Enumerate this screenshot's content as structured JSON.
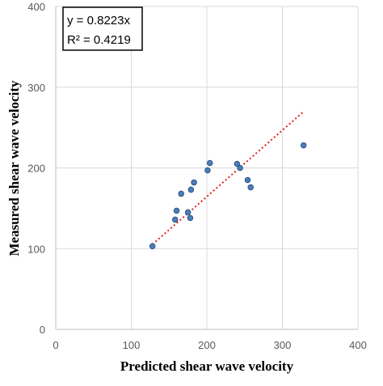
{
  "chart_data": {
    "type": "scatter",
    "xlabel": "Predicted shear wave velocity",
    "ylabel": "Measured shear wave velocity",
    "xlim": [
      0,
      400
    ],
    "ylim": [
      0,
      400
    ],
    "xticks": [
      0,
      100,
      200,
      300,
      400
    ],
    "yticks": [
      0,
      100,
      200,
      300,
      400
    ],
    "grid": true,
    "points": [
      {
        "x": 128,
        "y": 103
      },
      {
        "x": 158,
        "y": 136
      },
      {
        "x": 160,
        "y": 147
      },
      {
        "x": 166,
        "y": 168
      },
      {
        "x": 175,
        "y": 145
      },
      {
        "x": 178,
        "y": 138
      },
      {
        "x": 179,
        "y": 173
      },
      {
        "x": 183,
        "y": 182
      },
      {
        "x": 201,
        "y": 197
      },
      {
        "x": 204,
        "y": 206
      },
      {
        "x": 240,
        "y": 205
      },
      {
        "x": 244,
        "y": 200
      },
      {
        "x": 254,
        "y": 185
      },
      {
        "x": 258,
        "y": 176
      },
      {
        "x": 328,
        "y": 228
      }
    ],
    "trendline": {
      "slope": 0.8223,
      "x_range": [
        128,
        328
      ],
      "style": "dotted",
      "color": "#e0201b"
    },
    "annotation": {
      "equation": "y = 0.8223x",
      "r2_label": "R² = 0.4219"
    },
    "colors": {
      "point_fill": "#4a7ebb",
      "point_stroke": "#2a4e7a",
      "grid": "#d9d9d9",
      "axis": "#bfbfbf"
    }
  }
}
